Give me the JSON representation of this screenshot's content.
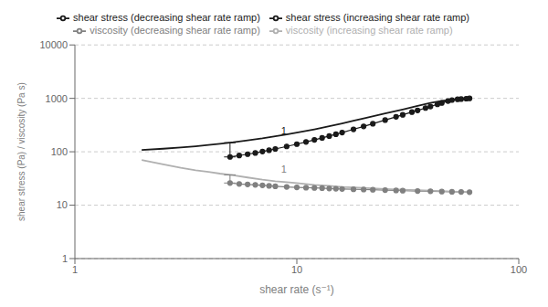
{
  "chart_data": {
    "type": "line",
    "log": true,
    "grid": "y",
    "legend": "top",
    "x_label": "shear rate (s⁻¹)",
    "y_label": "shear stress (Pa) / viscosity (Pa s)",
    "xlim": [
      1,
      100
    ],
    "ylim": [
      1,
      10000
    ],
    "xticks": [
      1,
      10,
      100
    ],
    "yticks": [
      1,
      10,
      100,
      1000,
      10000
    ],
    "series": [
      {
        "name": "shear stress (increasing shear rate ramp)",
        "color": "#1a1a1a",
        "marker": "none",
        "line_style": "solid",
        "x": [
          2.0,
          2.5,
          3.0,
          3.5,
          4.0,
          4.5,
          5.0,
          6.0,
          7.0,
          8.0,
          9.0,
          10.0,
          12.0,
          14.0,
          16.0,
          18.0,
          20.0,
          25.0,
          30.0,
          35.0,
          40.0,
          45.0,
          50.0,
          55.0,
          60.0
        ],
        "values": [
          108,
          114,
          120,
          127,
          134,
          141,
          148,
          163,
          178,
          195,
          212,
          228,
          263,
          300,
          340,
          380,
          420,
          520,
          620,
          720,
          820,
          900,
          940,
          970,
          1000
        ]
      },
      {
        "name": "shear stress (decreasing shear rate ramp)",
        "color": "#1a1a1a",
        "marker": "circle",
        "line_style": "solid",
        "x": [
          5.0,
          5.5,
          6.0,
          6.5,
          7.0,
          7.5,
          8.0,
          9.0,
          10.0,
          11.0,
          12.0,
          13.0,
          14.0,
          15.0,
          16.0,
          18.0,
          20.0,
          22.0,
          25.0,
          28.0,
          30.0,
          33.0,
          35.0,
          38.0,
          40.0,
          43.0,
          45.0,
          48.0,
          50.0,
          53.0,
          55.0,
          58.0,
          60.0
        ],
        "values": [
          80,
          85,
          90,
          95,
          101,
          107,
          113,
          126,
          139,
          153,
          167,
          182,
          197,
          213,
          229,
          263,
          298,
          335,
          392,
          451,
          492,
          553,
          594,
          659,
          704,
          773,
          820,
          890,
          930,
          960,
          970,
          985,
          1000
        ]
      },
      {
        "name": "viscosity (decreasing shear rate ramp)",
        "color": "#808080",
        "marker": "circle",
        "line_style": "solid",
        "x": [
          5.0,
          5.5,
          6.0,
          6.5,
          7.0,
          7.5,
          8.0,
          9.0,
          10.0,
          11.0,
          12.0,
          13.0,
          14.0,
          15.0,
          16.0,
          18.0,
          20.0,
          22.0,
          25.0,
          28.0,
          30.0,
          35.0,
          40.0,
          45.0,
          50.0,
          55.0,
          60.0
        ],
        "values": [
          26,
          25,
          24.5,
          24,
          23.5,
          23,
          22.5,
          22,
          21.5,
          21.2,
          21,
          20.8,
          20.5,
          20.3,
          20.1,
          19.8,
          19.6,
          19.4,
          19.1,
          18.9,
          18.7,
          18.4,
          18.2,
          18.0,
          17.8,
          17.7,
          17.5
        ]
      },
      {
        "name": "viscosity (increasing shear rate ramp)",
        "color": "#b0b0b0",
        "marker": "none",
        "line_style": "solid",
        "x": [
          2.0,
          2.5,
          3.0,
          3.5,
          4.0,
          4.5,
          5.0,
          6.0,
          7.0,
          8.0,
          9.0,
          10.0,
          12.0,
          14.0,
          16.0,
          18.0,
          20.0,
          25.0,
          30.0,
          35.0,
          40.0,
          50.0,
          60.0
        ],
        "values": [
          70,
          58,
          50,
          45,
          42,
          39,
          37,
          33,
          30,
          28,
          27,
          26,
          24,
          23,
          22,
          21.5,
          21,
          20,
          19.5,
          19,
          18.7,
          18,
          17.5
        ]
      }
    ],
    "brackets": [
      {
        "x": 5.0,
        "x_from": 4.7,
        "x_to": 5.3,
        "y_top": 148,
        "y_bottom": 80,
        "color": "#1a1a1a"
      },
      {
        "x": 5.0,
        "x_from": 4.7,
        "x_to": 5.3,
        "y_top": 37,
        "y_bottom": 26,
        "color": "#808080"
      }
    ],
    "annotations": [
      {
        "text": "1",
        "x": 8.5,
        "y": 250,
        "color": "#1a1a1a"
      },
      {
        "text": "1",
        "x": 8.5,
        "y": 47,
        "color": "#808080"
      }
    ]
  }
}
